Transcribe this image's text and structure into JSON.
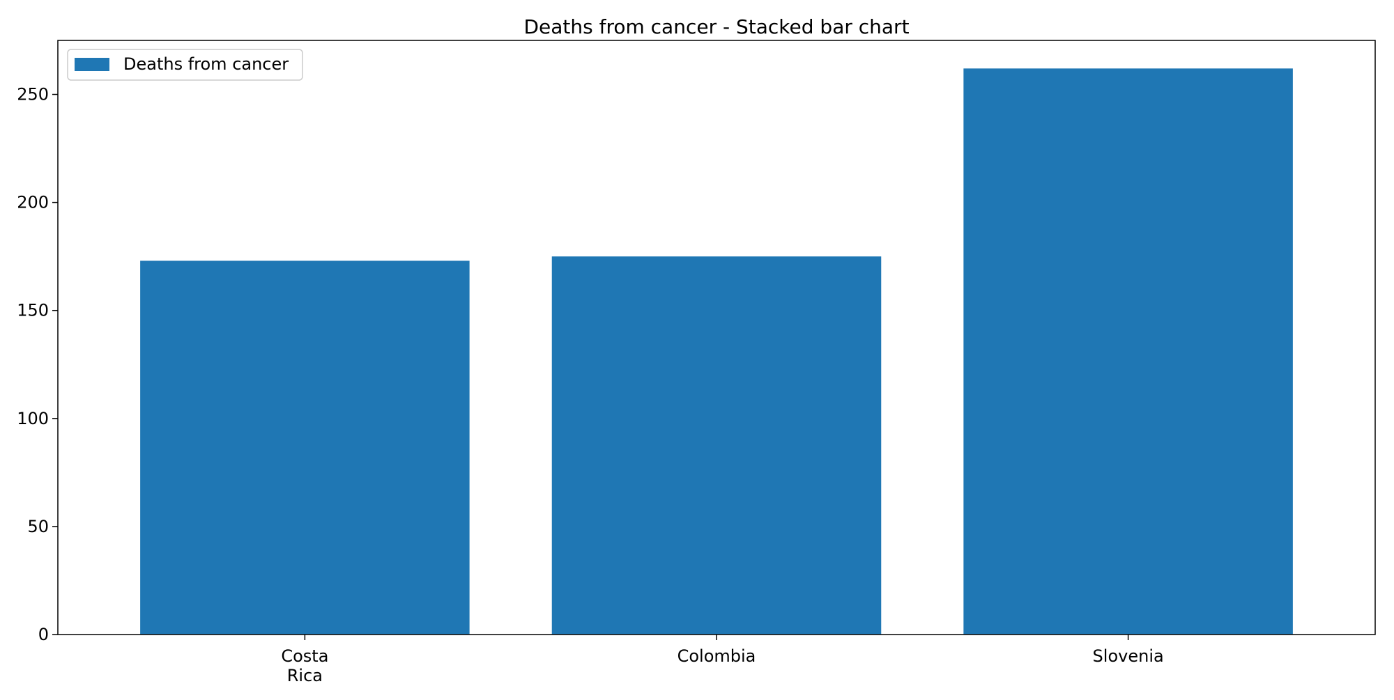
{
  "chart_data": {
    "type": "bar",
    "title": "Deaths from cancer - Stacked bar chart",
    "xlabel": "",
    "ylabel": "",
    "categories": [
      "Costa Rica",
      "Colombia",
      "Slovenia"
    ],
    "category_label_lines": [
      [
        "Costa",
        "Rica"
      ],
      [
        "Colombia"
      ],
      [
        "Slovenia"
      ]
    ],
    "series": [
      {
        "name": "Deaths from cancer",
        "values": [
          173,
          175,
          262
        ],
        "color": "#1f77b4"
      }
    ],
    "ylim": [
      0,
      275
    ],
    "yticks": [
      0,
      50,
      100,
      150,
      200,
      250
    ],
    "grid": false,
    "legend": {
      "position": "top-left"
    }
  }
}
